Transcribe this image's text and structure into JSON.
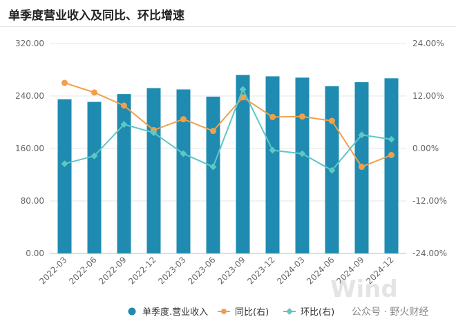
{
  "chart_data": {
    "type": "bar-line",
    "title": "单季度营业收入及同比、环比增速",
    "categories": [
      "2022-03",
      "2022-06",
      "2022-09",
      "2022-12",
      "2023-03",
      "2023-06",
      "2023-09",
      "2023-12",
      "2024-03",
      "2024-06",
      "2024-09",
      "2024-12"
    ],
    "series": [
      {
        "name": "单季度.营业收入",
        "kind": "bar",
        "axis": "left",
        "color": "#1f8bb0",
        "values": [
          235,
          231,
          243,
          252,
          250,
          239,
          272,
          270,
          268,
          255,
          261,
          267
        ]
      },
      {
        "name": "同比(右)",
        "kind": "line",
        "axis": "right",
        "color": "#f0a04b",
        "values": [
          15.0,
          12.8,
          9.8,
          4.2,
          6.7,
          4.0,
          11.7,
          7.2,
          7.3,
          6.3,
          -4.2,
          -1.5
        ]
      },
      {
        "name": "环比(右)",
        "kind": "line",
        "axis": "right",
        "color": "#5ec8c5",
        "values": [
          -3.5,
          -1.7,
          5.5,
          3.6,
          -1.2,
          -4.2,
          13.5,
          -0.4,
          -1.2,
          -5.0,
          3.1,
          2.1
        ]
      }
    ],
    "left_axis": {
      "ticks": [
        "0.00",
        "80.00",
        "160.00",
        "240.00",
        "320.00"
      ],
      "range": [
        0,
        320
      ]
    },
    "right_axis": {
      "ticks": [
        "-24.00%",
        "-12.00%",
        "0.00%",
        "12.00%",
        "24.00%"
      ],
      "range": [
        -24,
        24
      ]
    },
    "grid": true,
    "legend": "bottom-center"
  },
  "watermark": {
    "wind": "Wind",
    "text": "公众号 · 野火财经"
  }
}
